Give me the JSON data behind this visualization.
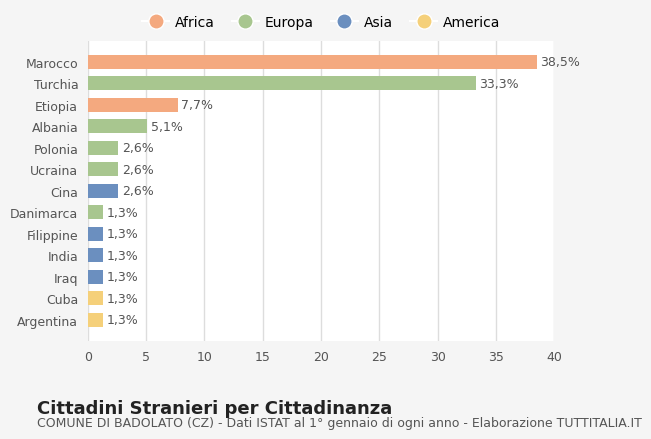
{
  "title": "Cittadini Stranieri per Cittadinanza",
  "subtitle": "COMUNE DI BADOLATO (CZ) - Dati ISTAT al 1° gennaio di ogni anno - Elaborazione TUTTITALIA.IT",
  "categories": [
    "Marocco",
    "Turchia",
    "Etiopia",
    "Albania",
    "Polonia",
    "Ucraina",
    "Cina",
    "Danimarca",
    "Filippine",
    "India",
    "Iraq",
    "Cuba",
    "Argentina"
  ],
  "values": [
    38.5,
    33.3,
    7.7,
    5.1,
    2.6,
    2.6,
    2.6,
    1.3,
    1.3,
    1.3,
    1.3,
    1.3,
    1.3
  ],
  "labels": [
    "38,5%",
    "33,3%",
    "7,7%",
    "5,1%",
    "2,6%",
    "2,6%",
    "2,6%",
    "1,3%",
    "1,3%",
    "1,3%",
    "1,3%",
    "1,3%",
    "1,3%"
  ],
  "colors": [
    "#F4A97F",
    "#A8C68F",
    "#F4A97F",
    "#A8C68F",
    "#A8C68F",
    "#A8C68F",
    "#6B8FBF",
    "#A8C68F",
    "#6B8FBF",
    "#6B8FBF",
    "#6B8FBF",
    "#F5D07A",
    "#F5D07A"
  ],
  "continent_colors": {
    "Africa": "#F4A97F",
    "Europa": "#A8C68F",
    "Asia": "#6B8FBF",
    "America": "#F5D07A"
  },
  "legend_order": [
    "Africa",
    "Europa",
    "Asia",
    "America"
  ],
  "xlim": [
    0,
    40
  ],
  "xticks": [
    0,
    5,
    10,
    15,
    20,
    25,
    30,
    35,
    40
  ],
  "background_color": "#f5f5f5",
  "bar_bg_color": "#ffffff",
  "grid_color": "#dddddd",
  "title_fontsize": 13,
  "subtitle_fontsize": 9,
  "label_fontsize": 9,
  "tick_fontsize": 9
}
